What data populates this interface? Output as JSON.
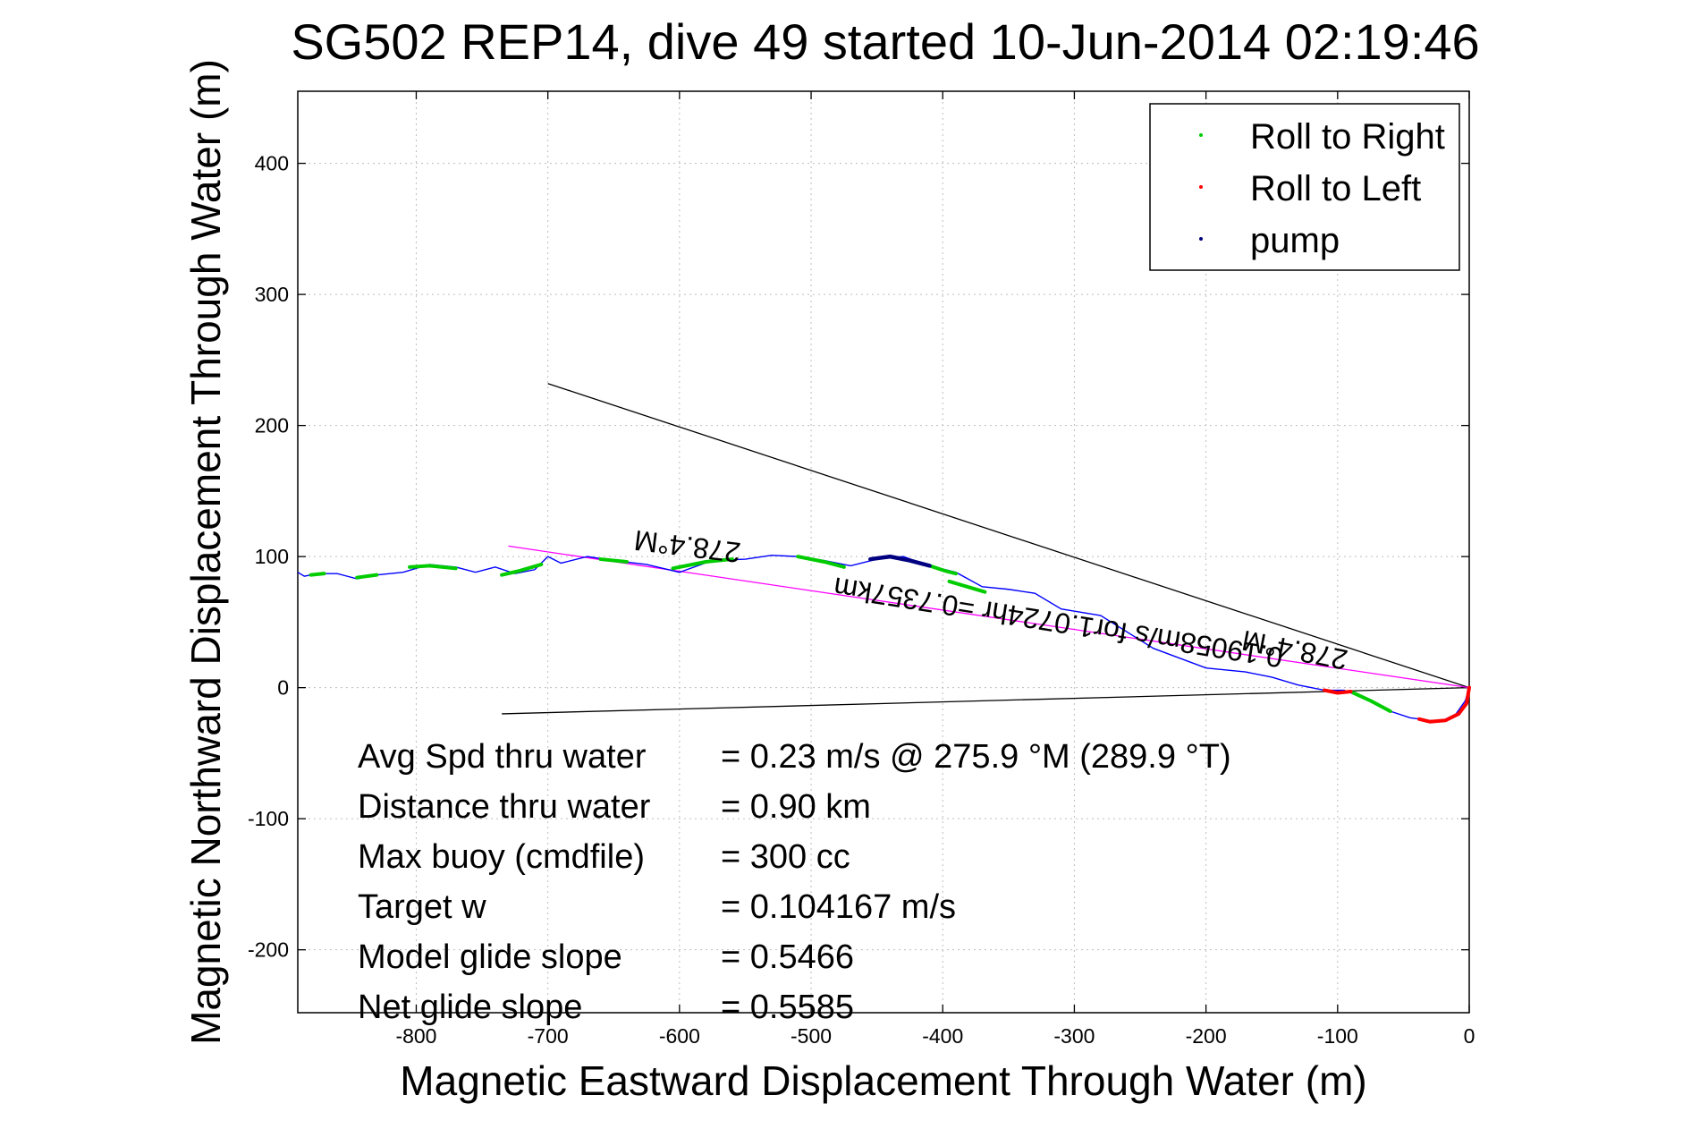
{
  "chart_data": {
    "type": "line",
    "title": "SG502 REP14, dive 49 started 10-Jun-2014 02:19:46",
    "xlabel": "Magnetic Eastward Displacement Through Water (m)",
    "ylabel": "Magnetic Northward Displacement Through Water (m)",
    "xlim": [
      -890,
      0
    ],
    "ylim": [
      -248,
      455
    ],
    "xticks": [
      -800,
      -700,
      -600,
      -500,
      -400,
      -300,
      -200,
      -100,
      0
    ],
    "yticks": [
      -200,
      -100,
      0,
      100,
      200,
      300,
      400
    ],
    "grid": true,
    "legend": {
      "placement": "top-right",
      "entries": [
        {
          "label": "Roll to Right",
          "color": "#00cc00"
        },
        {
          "label": "Roll to Left",
          "color": "#ff0000"
        },
        {
          "label": "pump",
          "color": "#000080"
        }
      ]
    },
    "track": {
      "color": "#0000ff",
      "x": [
        0,
        -3,
        -10,
        -20,
        -30,
        -45,
        -60,
        -80,
        -95,
        -110,
        -130,
        -150,
        -170,
        -200,
        -240,
        -280,
        -310,
        -330,
        -350,
        -370,
        -390,
        -410,
        -430,
        -450,
        -470,
        -490,
        -510,
        -530,
        -550,
        -575,
        -600,
        -625,
        -650,
        -670,
        -690,
        -700,
        -710,
        -725,
        -740,
        -755,
        -770,
        -790,
        -810,
        -830,
        -845,
        -860,
        -875,
        -885,
        -890
      ],
      "y": [
        0,
        -10,
        -20,
        -25,
        -25,
        -23,
        -18,
        -8,
        -2,
        -2,
        2,
        8,
        12,
        15,
        30,
        55,
        60,
        72,
        75,
        77,
        88,
        93,
        100,
        98,
        93,
        97,
        100,
        101,
        98,
        97,
        88,
        94,
        97,
        100,
        95,
        100,
        90,
        87,
        92,
        88,
        92,
        94,
        88,
        86,
        83,
        87,
        87,
        85,
        88
      ]
    },
    "roll_right_segments": [
      {
        "x": [
          -60,
          -75,
          -88
        ],
        "y": [
          -18,
          -10,
          -4
        ]
      },
      {
        "x": [
          -368,
          -378,
          -395
        ],
        "y": [
          73,
          76,
          81
        ]
      },
      {
        "x": [
          -390,
          -398,
          -410
        ],
        "y": [
          87,
          89,
          93
        ]
      },
      {
        "x": [
          -475,
          -490,
          -510
        ],
        "y": [
          92,
          96,
          100
        ]
      },
      {
        "x": [
          -560,
          -580,
          -605
        ],
        "y": [
          98,
          96,
          91
        ]
      },
      {
        "x": [
          -640,
          -660
        ],
        "y": [
          96,
          98
        ]
      },
      {
        "x": [
          -705,
          -722,
          -735
        ],
        "y": [
          94,
          89,
          86
        ]
      },
      {
        "x": [
          -770,
          -790,
          -805
        ],
        "y": [
          91,
          93,
          92
        ]
      },
      {
        "x": [
          -830,
          -845
        ],
        "y": [
          86,
          84
        ]
      },
      {
        "x": [
          -870,
          -880
        ],
        "y": [
          87,
          86
        ]
      }
    ],
    "roll_left_segments": [
      {
        "x": [
          0,
          -2,
          -8,
          -18,
          -30,
          -38
        ],
        "y": [
          0,
          -12,
          -20,
          -25,
          -26,
          -24
        ]
      },
      {
        "x": [
          -90,
          -100,
          -110
        ],
        "y": [
          -3,
          -4,
          -2
        ]
      }
    ],
    "pump_segments": [
      {
        "x": [
          -410,
          -425,
          -440,
          -455
        ],
        "y": [
          93,
          97,
          100,
          98
        ]
      }
    ],
    "reference_lines": [
      {
        "color": "#000000",
        "x": [
          0,
          -700
        ],
        "y": [
          0,
          232
        ]
      },
      {
        "color": "#000000",
        "x": [
          0,
          -735
        ],
        "y": [
          0,
          -20
        ]
      },
      {
        "color": "#ff00ff",
        "x": [
          0,
          -730
        ],
        "y": [
          0,
          108
        ]
      }
    ],
    "annotations": {
      "heading_far": "278.4°M",
      "speed_line": "0.19058m/s for1.0724hr =0.7357km",
      "heading_near": "278.4°M"
    },
    "stats": [
      {
        "label": "Avg Spd thru water",
        "value": "=  0.23 m/s @ 275.9 °M (289.9 °T)"
      },
      {
        "label": "Distance thru water",
        "value": "=  0.90 km"
      },
      {
        "label": "Max buoy (cmdfile)",
        "value": "= 300 cc"
      },
      {
        "label": "Target w",
        "value": "= 0.104167 m/s"
      },
      {
        "label": "Model glide slope",
        "value": "= 0.5466"
      },
      {
        "label": "Net glide slope",
        "value": "= 0.5585"
      }
    ]
  }
}
